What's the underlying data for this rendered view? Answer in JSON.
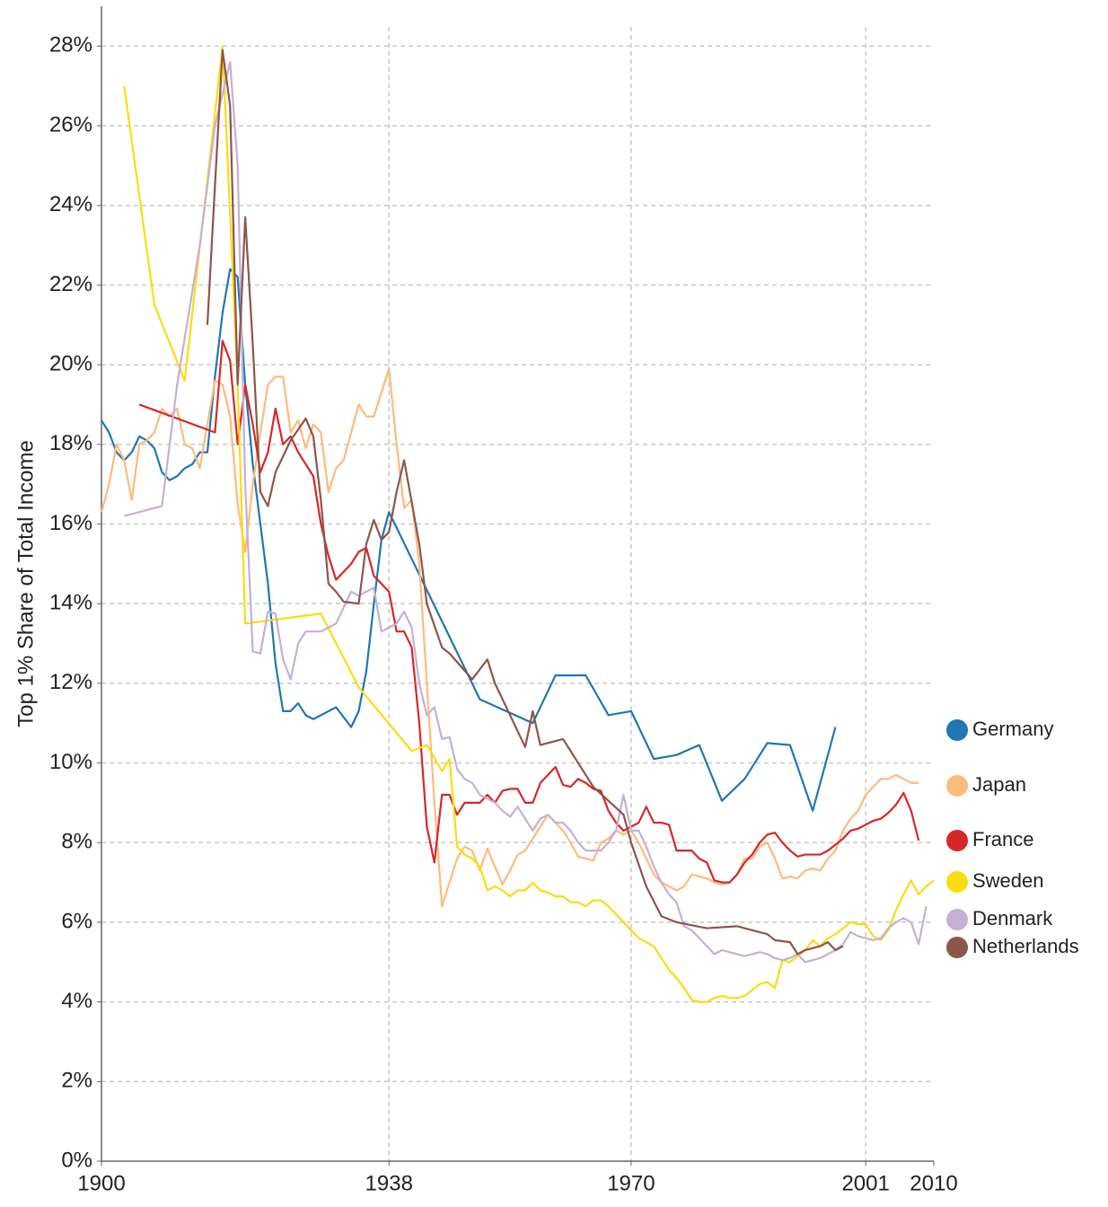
{
  "chart_data": {
    "type": "line",
    "y_label": "Top 1% Share of Total Income",
    "xlim": [
      1900,
      2010
    ],
    "xticks": [
      1900,
      1938,
      1970,
      2001,
      2010
    ],
    "ylim": [
      0,
      29
    ],
    "yticks": [
      {
        "value": 0,
        "label": "0%"
      },
      {
        "value": 2,
        "label": "2%"
      },
      {
        "value": 4,
        "label": "4%"
      },
      {
        "value": 6,
        "label": "6%"
      },
      {
        "value": 8,
        "label": "8%"
      },
      {
        "value": 10,
        "label": "10%"
      },
      {
        "value": 12,
        "label": "12%"
      },
      {
        "value": 14,
        "label": "14%"
      },
      {
        "value": 16,
        "label": "16%"
      },
      {
        "value": 18,
        "label": "18%"
      },
      {
        "value": 20,
        "label": "20%"
      },
      {
        "value": 22,
        "label": "22%"
      },
      {
        "value": 24,
        "label": "24%"
      },
      {
        "value": 26,
        "label": "26%"
      },
      {
        "value": 28,
        "label": "28%"
      }
    ],
    "grid": true,
    "legend": "right",
    "series": [
      {
        "name": "Germany",
        "color": "#1f77b4",
        "x": [
          1900,
          1901,
          1902,
          1903,
          1904,
          1905,
          1906,
          1907,
          1908,
          1909,
          1910,
          1911,
          1912,
          1913,
          1914,
          1915,
          1916,
          1917,
          1918,
          1919,
          1920,
          1921,
          1922,
          1923,
          1924,
          1925,
          1926,
          1927,
          1928,
          1929,
          1931,
          1933,
          1934,
          1935,
          1936,
          1937,
          1938,
          1950,
          1957,
          1960,
          1964,
          1967,
          1970,
          1973,
          1976,
          1979,
          1982,
          1985,
          1988,
          1991,
          1994,
          1997
        ],
        "values": [
          18.6,
          18.3,
          17.8,
          17.6,
          17.8,
          18.2,
          18.1,
          17.9,
          17.3,
          17.1,
          17.2,
          17.4,
          17.5,
          17.8,
          17.8,
          19.7,
          21.3,
          22.4,
          22.2,
          19.5,
          17.5,
          16.0,
          14.5,
          12.5,
          11.3,
          11.3,
          11.5,
          11.2,
          11.1,
          11.2,
          11.4,
          10.9,
          11.3,
          12.3,
          14.0,
          15.6,
          16.3,
          11.6,
          11.0,
          12.2,
          12.2,
          11.2,
          11.3,
          10.1,
          10.2,
          10.45,
          9.05,
          9.6,
          10.5,
          10.45,
          8.8,
          10.9
        ]
      },
      {
        "name": "Japan",
        "color": "#fdbb7b",
        "x": [
          1900,
          1901,
          1902,
          1903,
          1904,
          1905,
          1906,
          1907,
          1908,
          1909,
          1910,
          1911,
          1912,
          1913,
          1914,
          1915,
          1916,
          1917,
          1918,
          1919,
          1920,
          1921,
          1922,
          1923,
          1924,
          1925,
          1926,
          1927,
          1928,
          1929,
          1930,
          1931,
          1932,
          1933,
          1934,
          1935,
          1936,
          1937,
          1938,
          1939,
          1940,
          1941,
          1942,
          1943,
          1944,
          1945,
          1946,
          1947,
          1948,
          1949,
          1950,
          1951,
          1952,
          1953,
          1954,
          1955,
          1956,
          1957,
          1958,
          1959,
          1960,
          1961,
          1962,
          1963,
          1964,
          1965,
          1966,
          1967,
          1968,
          1969,
          1970,
          1971,
          1972,
          1973,
          1974,
          1975,
          1976,
          1977,
          1978,
          1979,
          1980,
          1981,
          1982,
          1983,
          1984,
          1985,
          1986,
          1987,
          1988,
          1989,
          1990,
          1991,
          1992,
          1993,
          1994,
          1995,
          1996,
          1997,
          1998,
          1999,
          2000,
          2001,
          2002,
          2003,
          2004,
          2005,
          2006,
          2007,
          2008
        ],
        "values": [
          16.3,
          17.0,
          18.0,
          17.6,
          16.6,
          18.0,
          18.1,
          18.3,
          18.9,
          18.7,
          18.9,
          18.0,
          17.9,
          17.4,
          18.5,
          19.6,
          19.5,
          18.7,
          16.5,
          15.3,
          17.0,
          18.3,
          19.5,
          19.7,
          19.7,
          18.3,
          18.6,
          17.9,
          18.5,
          18.3,
          16.8,
          17.4,
          17.6,
          18.3,
          19.0,
          18.7,
          18.7,
          19.3,
          19.9,
          18.0,
          16.4,
          16.6,
          15.0,
          12.0,
          9.0,
          6.4,
          7.0,
          7.6,
          7.9,
          7.8,
          7.3,
          7.85,
          7.4,
          6.95,
          7.3,
          7.7,
          7.8,
          8.1,
          8.4,
          8.7,
          8.5,
          8.3,
          8.0,
          7.65,
          7.6,
          7.55,
          8.0,
          8.1,
          8.3,
          8.2,
          8.3,
          8.0,
          7.6,
          7.2,
          7.0,
          6.9,
          6.8,
          6.9,
          7.2,
          7.15,
          7.1,
          7.0,
          6.95,
          7.0,
          7.2,
          7.6,
          7.6,
          7.9,
          8.0,
          7.6,
          7.1,
          7.15,
          7.1,
          7.3,
          7.35,
          7.3,
          7.6,
          7.8,
          8.3,
          8.6,
          8.8,
          9.2,
          9.4,
          9.6,
          9.6,
          9.7,
          9.6,
          9.5,
          9.5
        ]
      },
      {
        "name": "France",
        "color": "#d62728",
        "x": [
          1905,
          1915,
          1916,
          1917,
          1918,
          1919,
          1920,
          1921,
          1922,
          1923,
          1924,
          1925,
          1926,
          1927,
          1928,
          1929,
          1930,
          1931,
          1932,
          1933,
          1934,
          1935,
          1936,
          1937,
          1938,
          1939,
          1940,
          1941,
          1942,
          1943,
          1944,
          1945,
          1946,
          1947,
          1948,
          1949,
          1950,
          1951,
          1952,
          1953,
          1954,
          1955,
          1956,
          1957,
          1958,
          1959,
          1960,
          1961,
          1962,
          1963,
          1964,
          1965,
          1966,
          1967,
          1968,
          1969,
          1970,
          1971,
          1972,
          1973,
          1974,
          1975,
          1976,
          1977,
          1978,
          1979,
          1980,
          1981,
          1982,
          1983,
          1984,
          1985,
          1986,
          1987,
          1988,
          1989,
          1990,
          1991,
          1992,
          1993,
          1994,
          1995,
          1996,
          1997,
          1998,
          1999,
          2000,
          2001,
          2002,
          2003,
          2004,
          2005,
          2006,
          2007,
          2008
        ],
        "values": [
          19.0,
          18.3,
          20.6,
          20.1,
          18.0,
          19.5,
          18.5,
          17.3,
          17.8,
          18.9,
          18.0,
          18.2,
          17.8,
          17.5,
          17.2,
          16.0,
          15.2,
          14.6,
          14.8,
          15.0,
          15.3,
          15.4,
          14.7,
          14.5,
          14.3,
          13.3,
          13.3,
          12.9,
          11.0,
          8.4,
          7.5,
          9.2,
          9.2,
          8.7,
          9.0,
          9.0,
          9.0,
          9.2,
          9.0,
          9.3,
          9.35,
          9.35,
          9.0,
          9.0,
          9.5,
          9.7,
          9.9,
          9.45,
          9.4,
          9.6,
          9.5,
          9.35,
          9.3,
          8.8,
          8.5,
          8.3,
          8.4,
          8.5,
          8.9,
          8.5,
          8.5,
          8.45,
          7.8,
          7.8,
          7.8,
          7.6,
          7.5,
          7.05,
          7.0,
          7.0,
          7.2,
          7.5,
          7.7,
          8.0,
          8.2,
          8.25,
          8.0,
          7.8,
          7.65,
          7.7,
          7.7,
          7.7,
          7.8,
          7.95,
          8.1,
          8.3,
          8.35,
          8.45,
          8.55,
          8.6,
          8.75,
          8.95,
          9.25,
          8.8,
          8.05
        ]
      },
      {
        "name": "Sweden",
        "color": "#fbdc12",
        "x": [
          1903,
          1907,
          1911,
          1916,
          1918,
          1919,
          1929,
          1934,
          1941,
          1943,
          1945,
          1946,
          1947,
          1948,
          1949,
          1950,
          1951,
          1952,
          1953,
          1954,
          1955,
          1956,
          1957,
          1958,
          1959,
          1960,
          1961,
          1962,
          1963,
          1964,
          1965,
          1966,
          1967,
          1968,
          1969,
          1970,
          1971,
          1972,
          1973,
          1974,
          1975,
          1976,
          1977,
          1978,
          1979,
          1980,
          1981,
          1982,
          1983,
          1984,
          1985,
          1986,
          1987,
          1988,
          1989,
          1990,
          1991,
          1992,
          1993,
          1994,
          1995,
          1996,
          1997,
          1998,
          1999,
          2000,
          2001,
          2002,
          2003,
          2004,
          2005,
          2006,
          2007,
          2008,
          2009,
          2010
        ],
        "values": [
          27.0,
          21.5,
          19.6,
          28.0,
          19.5,
          13.5,
          13.75,
          11.9,
          10.3,
          10.45,
          9.8,
          10.1,
          7.9,
          7.7,
          7.6,
          7.4,
          6.8,
          6.9,
          6.8,
          6.65,
          6.8,
          6.8,
          7.0,
          6.8,
          6.75,
          6.65,
          6.65,
          6.5,
          6.5,
          6.4,
          6.55,
          6.55,
          6.4,
          6.2,
          6.0,
          5.8,
          5.6,
          5.5,
          5.4,
          5.1,
          4.8,
          4.6,
          4.35,
          4.05,
          4.0,
          4.0,
          4.1,
          4.15,
          4.1,
          4.1,
          4.15,
          4.3,
          4.45,
          4.5,
          4.35,
          5.05,
          5.0,
          5.15,
          5.3,
          5.55,
          5.4,
          5.6,
          5.7,
          5.85,
          6.0,
          5.95,
          5.95,
          5.65,
          5.55,
          5.8,
          6.3,
          6.7,
          7.05,
          6.7,
          6.9,
          7.05
        ]
      },
      {
        "name": "Denmark",
        "color": "#c5b0d5",
        "x": [
          1903,
          1908,
          1910,
          1913,
          1915,
          1917,
          1918,
          1919,
          1920,
          1921,
          1922,
          1923,
          1924,
          1925,
          1926,
          1927,
          1928,
          1929,
          1930,
          1931,
          1932,
          1933,
          1934,
          1935,
          1936,
          1937,
          1938,
          1939,
          1940,
          1941,
          1942,
          1943,
          1944,
          1945,
          1946,
          1947,
          1948,
          1949,
          1950,
          1951,
          1952,
          1953,
          1954,
          1955,
          1956,
          1957,
          1958,
          1959,
          1960,
          1961,
          1962,
          1963,
          1964,
          1965,
          1966,
          1967,
          1968,
          1969,
          1970,
          1971,
          1972,
          1973,
          1974,
          1975,
          1976,
          1977,
          1978,
          1979,
          1980,
          1981,
          1982,
          1983,
          1984,
          1985,
          1986,
          1987,
          1988,
          1989,
          1990,
          1991,
          1992,
          1993,
          1994,
          1995,
          1996,
          1997,
          1998,
          1999,
          2000,
          2001,
          2002,
          2003,
          2004,
          2005,
          2006,
          2007,
          2008,
          2009
        ],
        "values": [
          16.2,
          16.45,
          19.5,
          23.0,
          26.0,
          27.6,
          25.0,
          17.0,
          12.8,
          12.75,
          13.8,
          13.75,
          12.6,
          12.1,
          13.0,
          13.3,
          13.3,
          13.3,
          13.4,
          13.5,
          13.9,
          14.3,
          14.2,
          14.3,
          14.4,
          13.3,
          13.4,
          13.5,
          13.8,
          13.4,
          12.0,
          11.2,
          11.4,
          10.6,
          10.65,
          9.85,
          9.6,
          9.5,
          9.2,
          9.1,
          9.0,
          8.8,
          8.65,
          8.9,
          8.6,
          8.3,
          8.6,
          8.7,
          8.5,
          8.5,
          8.3,
          8.0,
          7.8,
          7.8,
          7.8,
          8.0,
          8.3,
          9.2,
          8.3,
          8.3,
          7.9,
          7.4,
          7.0,
          6.7,
          6.5,
          5.9,
          5.8,
          5.6,
          5.4,
          5.2,
          5.3,
          5.25,
          5.2,
          5.15,
          5.2,
          5.25,
          5.2,
          5.1,
          5.05,
          5.1,
          5.2,
          5.0,
          5.05,
          5.1,
          5.2,
          5.3,
          5.45,
          5.75,
          5.65,
          5.6,
          5.55,
          5.6,
          5.85,
          6.0,
          6.1,
          6.0,
          5.45,
          6.4
        ]
      },
      {
        "name": "Netherlands",
        "color": "#8c564b",
        "x": [
          1914,
          1915,
          1916,
          1917,
          1918,
          1919,
          1920,
          1921,
          1922,
          1923,
          1925,
          1927,
          1928,
          1929,
          1930,
          1931,
          1932,
          1934,
          1935,
          1936,
          1937,
          1938,
          1939,
          1940,
          1942,
          1943,
          1945,
          1946,
          1949,
          1951,
          1952,
          1956,
          1957,
          1958,
          1961,
          1963,
          1965,
          1969,
          1970,
          1972,
          1974,
          1976,
          1980,
          1984,
          1986,
          1988,
          1989,
          1991,
          1992,
          1993,
          1995,
          1996,
          1997,
          1998
        ],
        "values": [
          21.0,
          24.5,
          27.9,
          26.5,
          19.5,
          23.7,
          20.5,
          16.8,
          16.45,
          17.3,
          18.1,
          18.65,
          18.2,
          16.6,
          14.5,
          14.3,
          14.05,
          14.0,
          15.5,
          16.1,
          15.6,
          15.8,
          16.8,
          17.6,
          15.5,
          14.0,
          12.9,
          12.75,
          12.1,
          12.6,
          12.0,
          10.4,
          11.3,
          10.45,
          10.6,
          10.0,
          9.4,
          8.7,
          8.0,
          6.9,
          6.15,
          6.0,
          5.85,
          5.9,
          5.8,
          5.7,
          5.55,
          5.5,
          5.2,
          5.3,
          5.4,
          5.5,
          5.3,
          5.4
        ]
      }
    ]
  }
}
